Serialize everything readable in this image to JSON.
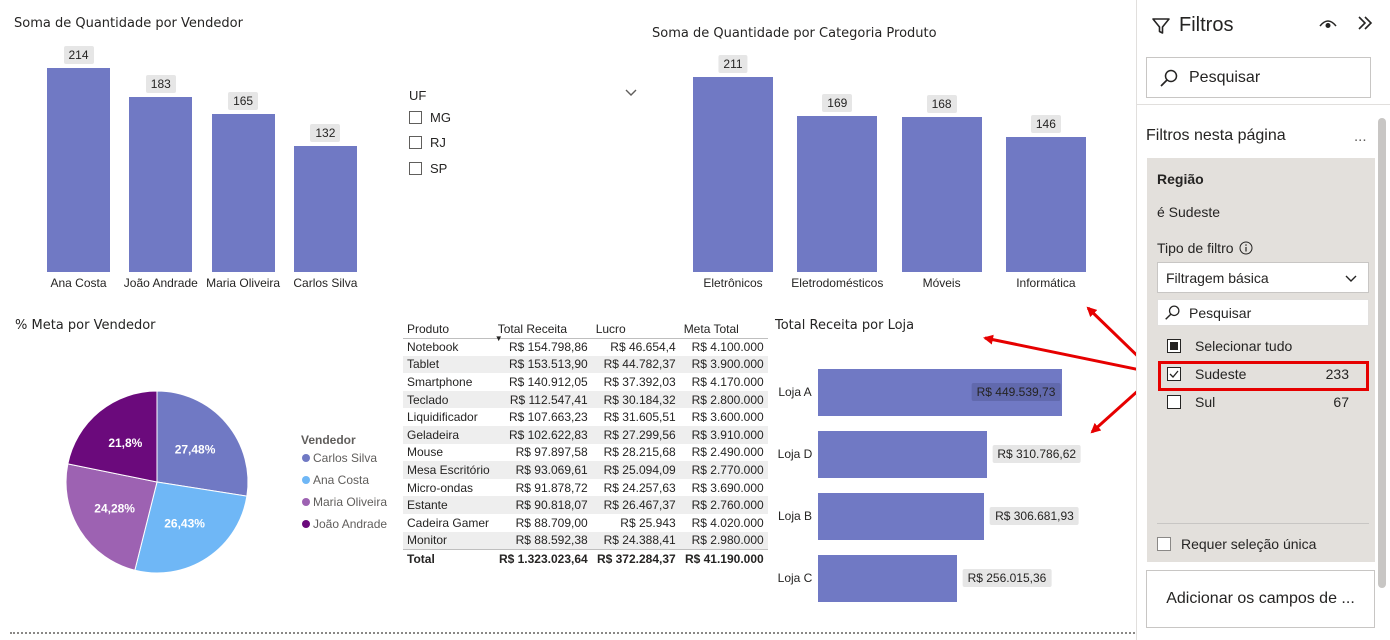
{
  "vendor_chart": {
    "title": "Soma de Quantidade por Vendedor",
    "chart_data": {
      "type": "bar",
      "categories": [
        "Ana Costa",
        "João Andrade",
        "Maria Oliveira",
        "Carlos Silva"
      ],
      "values": [
        214,
        183,
        165,
        132
      ],
      "title": "Soma de Quantidade por Vendedor"
    },
    "labels": [
      "214",
      "183",
      "165",
      "132"
    ]
  },
  "slicer": {
    "title": "UF",
    "options": [
      "MG",
      "RJ",
      "SP"
    ]
  },
  "category_chart": {
    "title": "Soma de Quantidade por Categoria Produto",
    "chart_data": {
      "type": "bar",
      "categories": [
        "Eletrônicos",
        "Eletrodomésticos",
        "Móveis",
        "Informática"
      ],
      "values": [
        211,
        169,
        168,
        146
      ],
      "title": "Soma de Quantidade por Categoria Produto"
    },
    "labels": [
      "211",
      "169",
      "168",
      "146"
    ]
  },
  "pie_chart": {
    "title": "% Meta por Vendedor",
    "legend_title": "Vendedor",
    "legend": [
      "Carlos Silva",
      "Ana Costa",
      "Maria Oliveira",
      "João Andrade"
    ],
    "colors": [
      "#7079c4",
      "#6fb7f6",
      "#9d62b2",
      "#6b0a7c"
    ],
    "chart_data": {
      "type": "pie",
      "categories": [
        "Carlos Silva",
        "Ana Costa",
        "Maria Oliveira",
        "João Andrade"
      ],
      "values": [
        27.48,
        26.43,
        24.28,
        21.8
      ],
      "title": "% Meta por Vendedor"
    },
    "labels": [
      "27,48%",
      "26,43%",
      "24,28%",
      "21,8%"
    ]
  },
  "table": {
    "headers": [
      "Produto",
      "Total Receita",
      "Lucro",
      "Meta Total"
    ],
    "rows": [
      [
        "Notebook",
        "R$ 154.798,86",
        "R$ 46.654,4",
        "R$ 4.100.000"
      ],
      [
        "Tablet",
        "R$ 153.513,90",
        "R$ 44.782,37",
        "R$ 3.900.000"
      ],
      [
        "Smartphone",
        "R$ 140.912,05",
        "R$ 37.392,03",
        "R$ 4.170.000"
      ],
      [
        "Teclado",
        "R$ 112.547,41",
        "R$ 30.184,32",
        "R$ 2.800.000"
      ],
      [
        "Liquidificador",
        "R$ 107.663,23",
        "R$ 31.605,51",
        "R$ 3.600.000"
      ],
      [
        "Geladeira",
        "R$ 102.622,83",
        "R$ 27.299,56",
        "R$ 3.910.000"
      ],
      [
        "Mouse",
        "R$ 97.897,58",
        "R$ 28.215,68",
        "R$ 2.490.000"
      ],
      [
        "Mesa Escritório",
        "R$ 93.069,61",
        "R$ 25.094,09",
        "R$ 2.770.000"
      ],
      [
        "Micro-ondas",
        "R$ 91.878,72",
        "R$ 24.257,63",
        "R$ 3.690.000"
      ],
      [
        "Estante",
        "R$ 90.818,07",
        "R$ 26.467,37",
        "R$ 2.760.000"
      ],
      [
        "Cadeira Gamer",
        "R$ 88.709,00",
        "R$ 25.943",
        "R$ 4.020.000"
      ],
      [
        "Monitor",
        "R$ 88.592,38",
        "R$ 24.388,41",
        "R$ 2.980.000"
      ]
    ],
    "total": [
      "Total",
      "R$ 1.323.023,64",
      "R$ 372.284,37",
      "R$ 41.190.000"
    ]
  },
  "store_chart": {
    "title": "Total Receita por Loja",
    "chart_data": {
      "type": "bar",
      "orientation": "horizontal",
      "categories": [
        "Loja A",
        "Loja D",
        "Loja B",
        "Loja C"
      ],
      "values": [
        449539.73,
        310786.62,
        306681.93,
        256015.36
      ],
      "title": "Total Receita por Loja"
    },
    "labels": [
      "R$ 449.539,73",
      "R$ 310.786,62",
      "R$ 306.681,93",
      "R$ 256.015,36"
    ]
  },
  "filters": {
    "title": "Filtros",
    "search_placeholder": "Pesquisar",
    "section_title": "Filtros nesta página",
    "more": "...",
    "card": {
      "field": "Região",
      "summary": "é Sudeste",
      "type_label": "Tipo de filtro",
      "type_value": "Filtragem básica",
      "search_placeholder": "Pesquisar",
      "select_all": "Selecionar tudo",
      "items": [
        {
          "label": "Sudeste",
          "count": "233",
          "checked": true
        },
        {
          "label": "Sul",
          "count": "67",
          "checked": false
        }
      ],
      "single_select": "Requer seleção única"
    },
    "add_fields": "Adicionar os campos de ..."
  },
  "colors": {
    "bar": "#7079c4",
    "highlight": "#e60000"
  }
}
